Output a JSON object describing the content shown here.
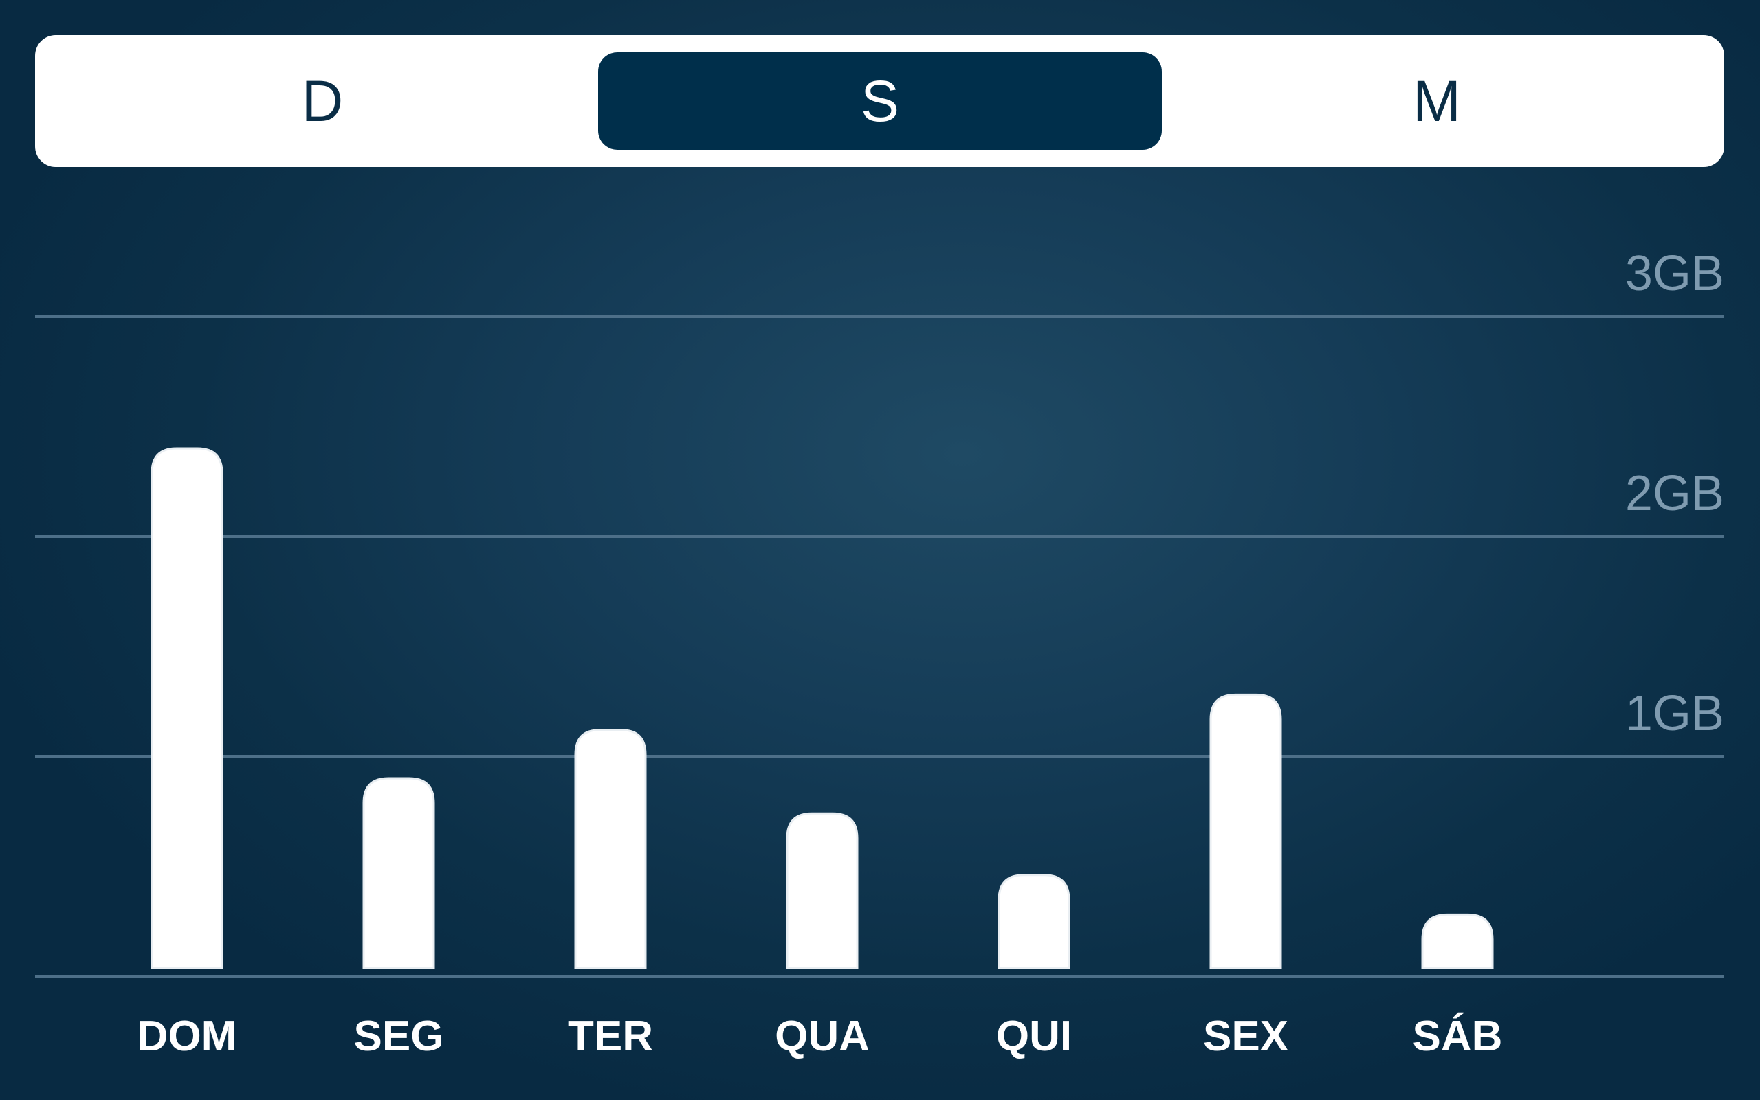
{
  "period_selector": {
    "options": [
      "D",
      "S",
      "M"
    ],
    "selected_index": 1
  },
  "colors": {
    "active_segment": "#002f4b",
    "segment_text": "#0a2d46",
    "bar": "#ffffff",
    "gridline": "#4d6f88",
    "ytick_text": "#7f9bb0"
  },
  "chart_data": {
    "type": "bar",
    "categories": [
      "DOM",
      "SEG",
      "TER",
      "QUA",
      "QUI",
      "SEX",
      "SÁB"
    ],
    "values": [
      2.4,
      0.9,
      1.12,
      0.74,
      0.46,
      1.28,
      0.28
    ],
    "unit": "GB",
    "yticks": [
      {
        "value": 1,
        "label": "1GB"
      },
      {
        "value": 2,
        "label": "2GB"
      },
      {
        "value": 3,
        "label": "3GB"
      }
    ],
    "ylim": [
      0,
      3
    ],
    "grid": true,
    "ytick_position": "right"
  }
}
